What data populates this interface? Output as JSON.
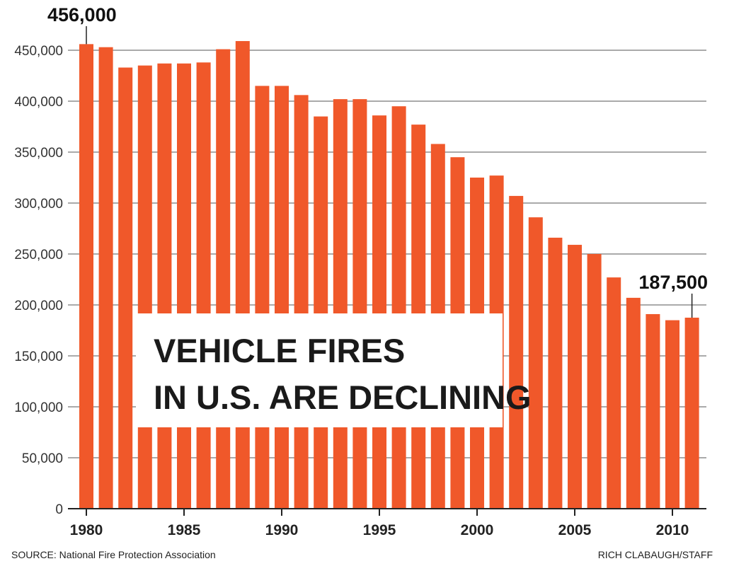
{
  "chart_data": {
    "type": "bar",
    "title_lines": [
      "VEHICLE FIRES",
      "IN U.S. ARE DECLINING"
    ],
    "categories": [
      1980,
      1981,
      1982,
      1983,
      1984,
      1985,
      1986,
      1987,
      1988,
      1989,
      1990,
      1991,
      1992,
      1993,
      1994,
      1995,
      1996,
      1997,
      1998,
      1999,
      2000,
      2001,
      2002,
      2003,
      2004,
      2005,
      2006,
      2007,
      2008,
      2009,
      2010,
      2011
    ],
    "values": [
      456000,
      453000,
      433000,
      435000,
      437000,
      437000,
      438000,
      451000,
      459000,
      415000,
      415000,
      406000,
      385000,
      402000,
      402000,
      386000,
      395000,
      377000,
      358000,
      345000,
      325000,
      327000,
      307000,
      286000,
      266000,
      259000,
      250000,
      227000,
      207000,
      191000,
      185000,
      187500
    ],
    "ylim": [
      0,
      450000
    ],
    "yticks": [
      0,
      50000,
      100000,
      150000,
      200000,
      250000,
      300000,
      350000,
      400000,
      450000
    ],
    "ytick_labels": [
      "0",
      "50,000",
      "100,000",
      "150,000",
      "200,000",
      "250,000",
      "300,000",
      "350,000",
      "400,000",
      "450,000"
    ],
    "xtick_labels": [
      {
        "year": 1980,
        "label": "1980"
      },
      {
        "year": 1985,
        "label": "1985"
      },
      {
        "year": 1990,
        "label": "1990"
      },
      {
        "year": 1995,
        "label": "1995"
      },
      {
        "year": 2000,
        "label": "2000"
      },
      {
        "year": 2005,
        "label": "2005"
      },
      {
        "year": 2010,
        "label": "2010"
      }
    ],
    "annotations": [
      {
        "year": 1980,
        "text": "456,000"
      },
      {
        "year": 2011,
        "text": "187,500"
      }
    ],
    "grid": true,
    "bar_color": "#f0582a"
  },
  "footer": {
    "source": "SOURCE: National Fire Protection Association",
    "credit": "RICH CLABAUGH/STAFF"
  }
}
